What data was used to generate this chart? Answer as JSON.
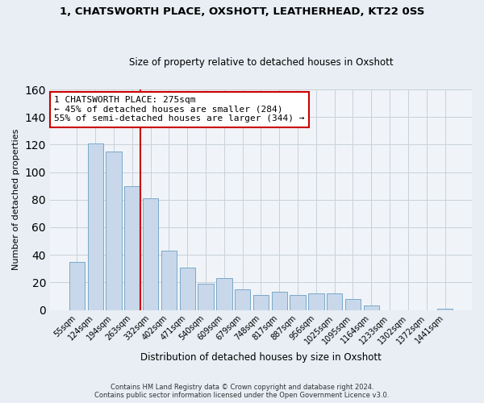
{
  "title1": "1, CHATSWORTH PLACE, OXSHOTT, LEATHERHEAD, KT22 0SS",
  "title2": "Size of property relative to detached houses in Oxshott",
  "xlabel": "Distribution of detached houses by size in Oxshott",
  "ylabel": "Number of detached properties",
  "bar_color": "#c8d8ea",
  "bar_edge_color": "#7aa8c8",
  "categories": [
    "55sqm",
    "124sqm",
    "194sqm",
    "263sqm",
    "332sqm",
    "402sqm",
    "471sqm",
    "540sqm",
    "609sqm",
    "679sqm",
    "748sqm",
    "817sqm",
    "887sqm",
    "956sqm",
    "1025sqm",
    "1095sqm",
    "1164sqm",
    "1233sqm",
    "1302sqm",
    "1372sqm",
    "1441sqm"
  ],
  "values": [
    35,
    121,
    115,
    90,
    81,
    43,
    31,
    19,
    23,
    15,
    11,
    13,
    11,
    12,
    12,
    8,
    3,
    0,
    0,
    0,
    1
  ],
  "marker_bar_idx": 3,
  "annotation_title": "1 CHATSWORTH PLACE: 275sqm",
  "annotation_line1": "← 45% of detached houses are smaller (284)",
  "annotation_line2": "55% of semi-detached houses are larger (344) →",
  "annotation_box_color": "white",
  "annotation_box_edge_color": "#cc0000",
  "marker_line_color": "#cc0000",
  "ylim": [
    0,
    160
  ],
  "yticks": [
    0,
    20,
    40,
    60,
    80,
    100,
    120,
    140,
    160
  ],
  "footer1": "Contains HM Land Registry data © Crown copyright and database right 2024.",
  "footer2": "Contains public sector information licensed under the Open Government Licence v3.0.",
  "background_color": "#e8eef4",
  "plot_bg_color": "#f0f4f8",
  "grid_color": "#c8d0d8"
}
